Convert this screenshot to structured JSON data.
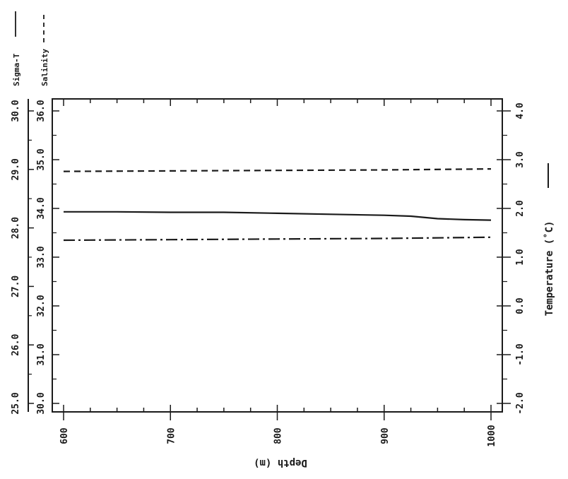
{
  "chart_data": {
    "type": "line",
    "xlabel": "Depth (m)",
    "xlim": [
      600,
      1000
    ],
    "x_ticks": [
      "600",
      "700",
      "800",
      "900",
      "1000"
    ],
    "temperature_axis": {
      "label": "Temperature (˚C)",
      "range": [
        -2.0,
        4.0
      ],
      "ticks": [
        "-2.0",
        "-1.0",
        "0.0",
        "1.0",
        "2.0",
        "3.0",
        "4.0"
      ]
    },
    "salinity_axis": {
      "range": [
        30.0,
        36.0
      ],
      "ticks": [
        "30.0",
        "31.0",
        "32.0",
        "33.0",
        "34.0",
        "35.0",
        "36.0"
      ]
    },
    "sigma_axis": {
      "range": [
        25.0,
        30.0
      ],
      "ticks": [
        "25.0",
        "26.0",
        "27.0",
        "28.0",
        "29.0",
        "30.0"
      ]
    },
    "legend": [
      "Sigma-T",
      "Salinity"
    ],
    "series": [
      {
        "name": "Temperature",
        "axis": "temperature",
        "style": "solid",
        "x": [
          600,
          650,
          700,
          750,
          800,
          850,
          900,
          925,
          950,
          975,
          1000
        ],
        "y": [
          1.93,
          1.93,
          1.92,
          1.92,
          1.9,
          1.88,
          1.86,
          1.84,
          1.79,
          1.77,
          1.76
        ]
      },
      {
        "name": "Salinity",
        "axis": "salinity",
        "style": "dashed",
        "x": [
          600,
          700,
          800,
          900,
          1000
        ],
        "y": [
          34.76,
          34.77,
          34.78,
          34.79,
          34.81
        ]
      },
      {
        "name": "Sigma-T",
        "axis": "sigma",
        "style": "dashdot",
        "x": [
          600,
          700,
          800,
          900,
          1000
        ],
        "y": [
          27.79,
          27.8,
          27.81,
          27.82,
          27.84
        ]
      }
    ]
  }
}
